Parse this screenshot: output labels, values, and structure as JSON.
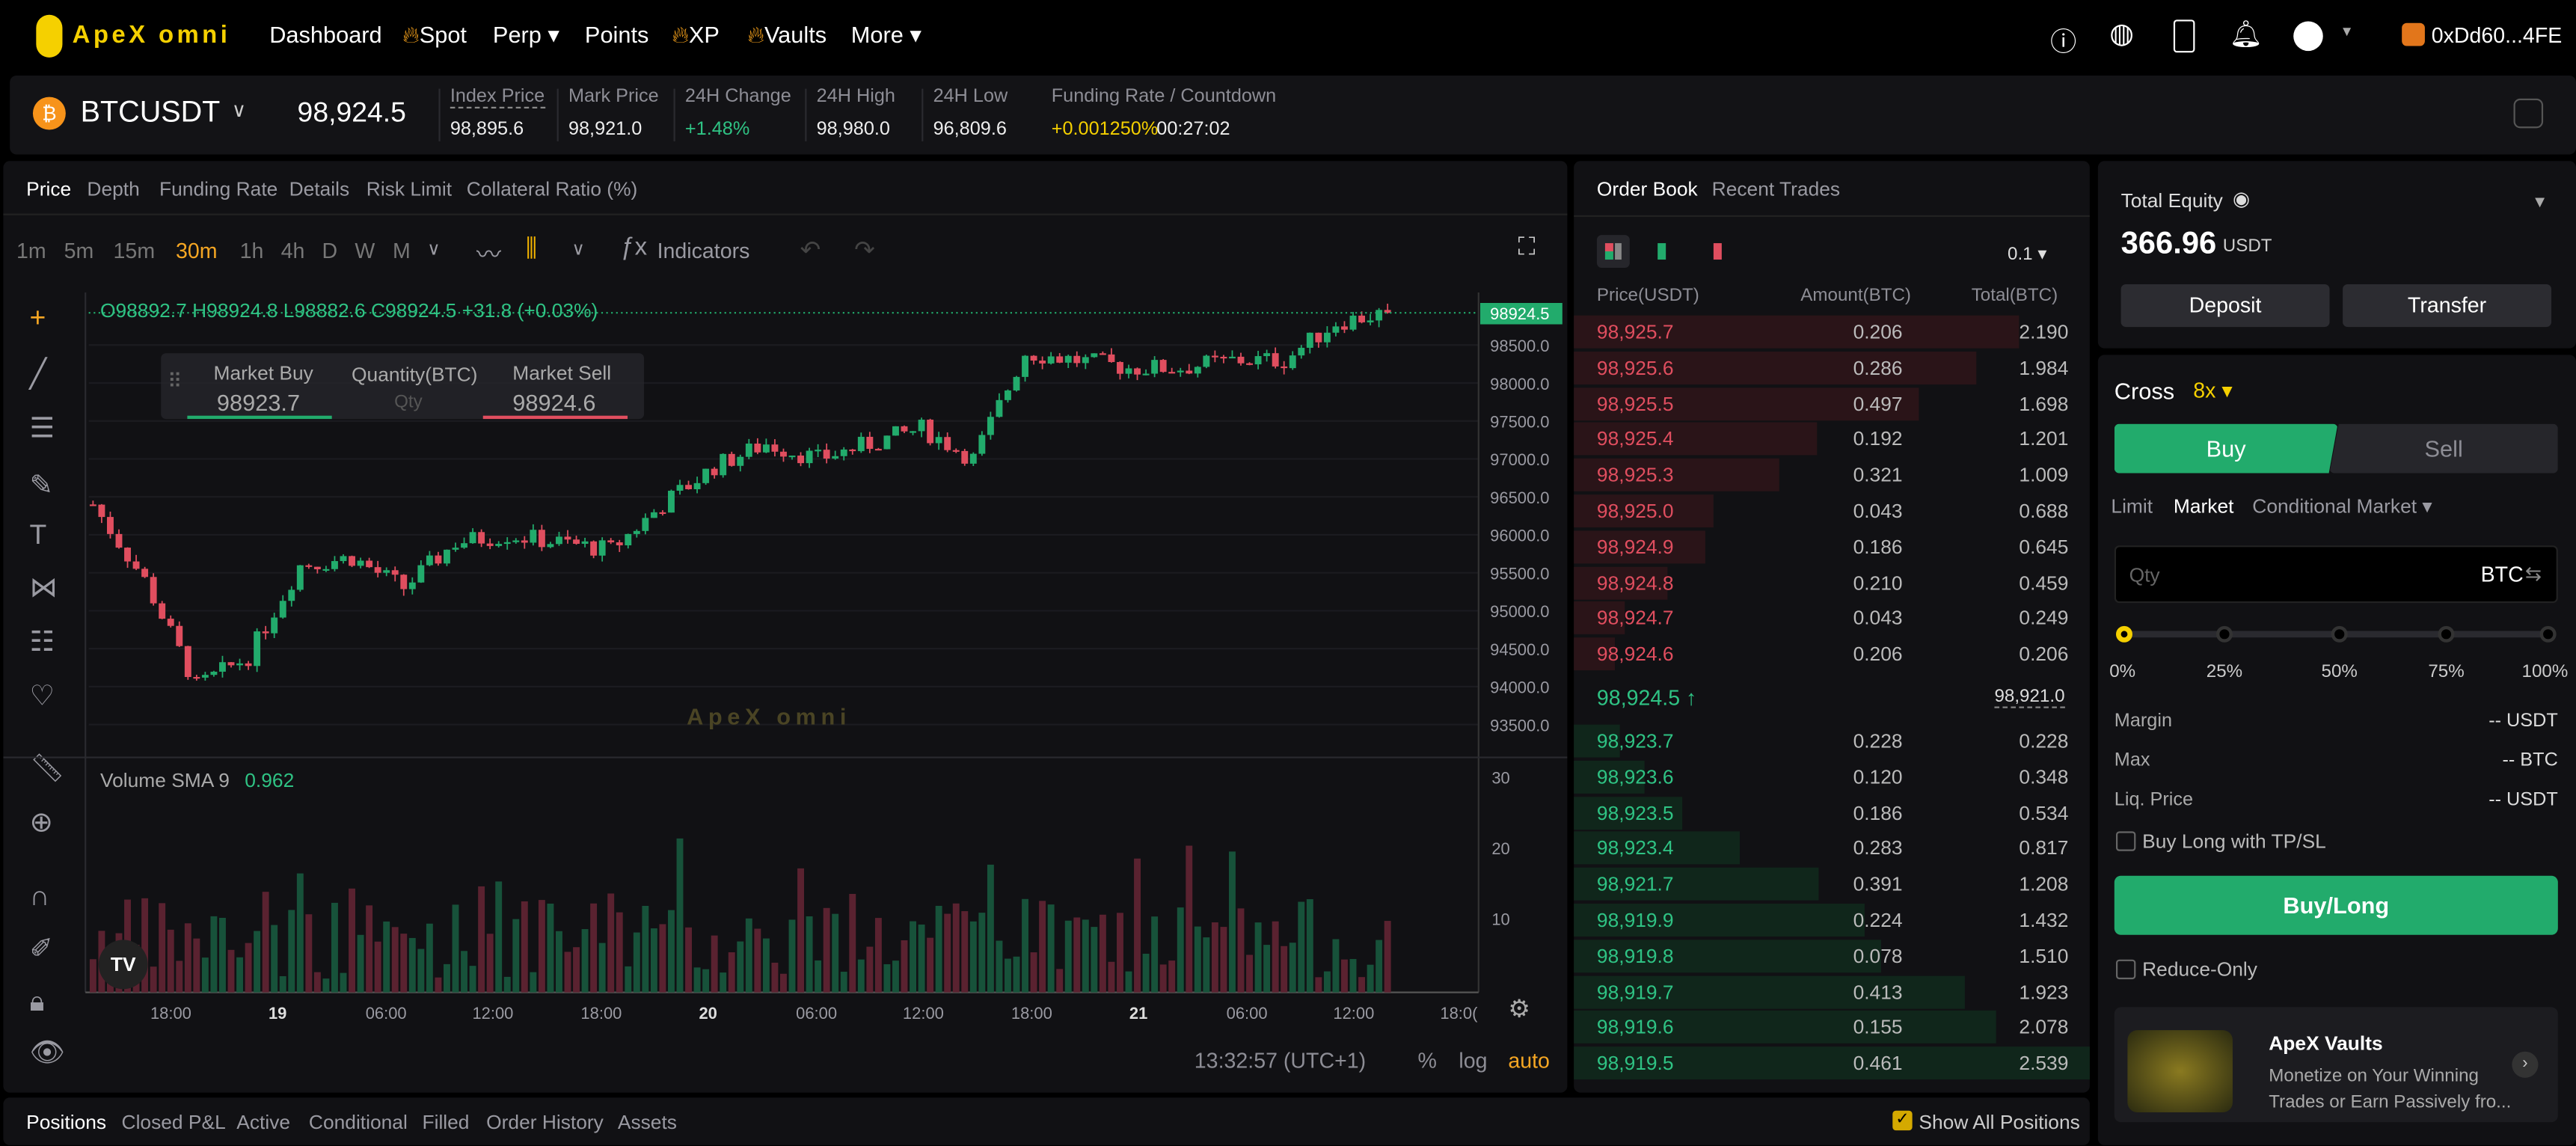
{
  "nav": {
    "logo": "ApeX omni",
    "items": [
      {
        "label": "Dashboard",
        "flame": false
      },
      {
        "label": "Spot",
        "flame": true
      },
      {
        "label": "Perp ▾",
        "flame": false
      },
      {
        "label": "Points",
        "flame": false
      },
      {
        "label": "XP",
        "flame": true
      },
      {
        "label": "Vaults",
        "flame": true
      },
      {
        "label": "More ▾",
        "flame": false
      }
    ],
    "wallet": "0xDd60...4FE",
    "icons": [
      "help-icon",
      "globe-icon",
      "mobile-icon",
      "bell-icon",
      "network-icon"
    ]
  },
  "ticker": {
    "symbol": "BTCUSDT",
    "last": "98,924.5",
    "stats": [
      {
        "label": "Index Price",
        "value": "98,895.6"
      },
      {
        "label": "Mark Price",
        "value": "98,921.0"
      },
      {
        "label": "24H Change",
        "value": "+1.48%"
      },
      {
        "label": "24H High",
        "value": "98,980.0"
      },
      {
        "label": "24H Low",
        "value": "96,809.6"
      }
    ],
    "funding_label": "Funding Rate / Countdown",
    "funding_rate": "+0.001250%",
    "countdown": "00:27:02"
  },
  "chart": {
    "tabs": [
      "Price",
      "Depth",
      "Funding Rate",
      "Details",
      "Risk Limit",
      "Collateral Ratio  (%)"
    ],
    "intervals": [
      "1m",
      "5m",
      "15m",
      "30m",
      "1h",
      "4h",
      "D",
      "W",
      "M"
    ],
    "active_interval": "30m",
    "indicators": "Indicators",
    "ohlc": "O98892.7 H98924.8 L98882.6 C98924.5 +31.8 (+0.03%)",
    "market_buy": {
      "label": "Market Buy",
      "value": "98923.7"
    },
    "qty_label": "Quantity(BTC)",
    "qty_placeholder": "Qty",
    "market_sell": {
      "label": "Market Sell",
      "value": "98924.6"
    },
    "watermark": "ApeX omni",
    "price_ticks": [
      "98500.0",
      "98000.0",
      "97500.0",
      "97000.0",
      "96500.0",
      "96000.0",
      "95500.0",
      "95000.0",
      "94500.0",
      "94000.0",
      "93500.0"
    ],
    "current_price_tag": "98924.5",
    "volume_label": "Volume SMA 9",
    "volume_value": "0.962",
    "volume_ticks": [
      "30",
      "20",
      "10"
    ],
    "time_ticks": [
      "18:00",
      "19",
      "06:00",
      "12:00",
      "18:00",
      "20",
      "06:00",
      "12:00",
      "18:00",
      "21",
      "06:00",
      "12:00",
      "18:0("
    ],
    "clock": "13:32:57 (UTC+1)",
    "scale_opts": [
      "%",
      "log",
      "auto"
    ],
    "closes_every_3h": [
      96400,
      95400,
      94000,
      94400,
      95600,
      95700,
      95300,
      95900,
      96000,
      95900,
      95800,
      96400,
      96900,
      97200,
      97000,
      97200,
      97400,
      97000,
      98400,
      98300,
      98200,
      98200,
      98300,
      98300,
      98800,
      98924.5
    ],
    "up_color": "#22ab6c",
    "down_color": "#e04e5f"
  },
  "orderbook": {
    "tabs": [
      "Order Book",
      "Recent Trades"
    ],
    "precision": "0.1 ▾",
    "headers": [
      "Price(USDT)",
      "Amount(BTC)",
      "Total(BTC)"
    ],
    "asks": [
      [
        "98,925.7",
        "0.206",
        "2.190"
      ],
      [
        "98,925.6",
        "0.286",
        "1.984"
      ],
      [
        "98,925.5",
        "0.497",
        "1.698"
      ],
      [
        "98,925.4",
        "0.192",
        "1.201"
      ],
      [
        "98,925.3",
        "0.321",
        "1.009"
      ],
      [
        "98,925.0",
        "0.043",
        "0.688"
      ],
      [
        "98,924.9",
        "0.186",
        "0.645"
      ],
      [
        "98,924.8",
        "0.210",
        "0.459"
      ],
      [
        "98,924.7",
        "0.043",
        "0.249"
      ],
      [
        "98,924.6",
        "0.206",
        "0.206"
      ]
    ],
    "mid": "98,924.5 ↑",
    "mark": "98,921.0",
    "bids": [
      [
        "98,923.7",
        "0.228",
        "0.228"
      ],
      [
        "98,923.6",
        "0.120",
        "0.348"
      ],
      [
        "98,923.5",
        "0.186",
        "0.534"
      ],
      [
        "98,923.4",
        "0.283",
        "0.817"
      ],
      [
        "98,921.7",
        "0.391",
        "1.208"
      ],
      [
        "98,919.9",
        "0.224",
        "1.432"
      ],
      [
        "98,919.8",
        "0.078",
        "1.510"
      ],
      [
        "98,919.7",
        "0.413",
        "1.923"
      ],
      [
        "98,919.6",
        "0.155",
        "2.078"
      ],
      [
        "98,919.5",
        "0.461",
        "2.539"
      ]
    ]
  },
  "account": {
    "equity_label": "Total Equity",
    "equity": "366.96",
    "unit": "USDT",
    "deposit": "Deposit",
    "transfer": "Transfer"
  },
  "order": {
    "margin_mode": "Cross",
    "leverage": "8x ▾",
    "buy": "Buy",
    "sell": "Sell",
    "types": [
      "Limit",
      "Market",
      "Conditional Market ▾"
    ],
    "qty_placeholder": "Qty",
    "qty_unit": "BTC",
    "slider": [
      "0%",
      "25%",
      "50%",
      "75%",
      "100%"
    ],
    "slider_value": 0,
    "info": [
      {
        "label": "Margin",
        "value": "-- USDT"
      },
      {
        "label": "Max",
        "value": "-- BTC"
      },
      {
        "label": "Liq. Price",
        "value": "-- USDT"
      }
    ],
    "tpsl": "Buy Long with TP/SL",
    "submit": "Buy/Long",
    "reduce_only": "Reduce-Only",
    "vault_title": "ApeX Vaults",
    "vault_desc1": "Monetize on Your Winning",
    "vault_desc2": "Trades or Earn Passively fro..."
  },
  "bottom": {
    "tabs": [
      "Positions",
      "Closed P&L",
      "Active",
      "Conditional",
      "Filled",
      "Order History",
      "Assets"
    ],
    "show_all": "Show All Positions"
  }
}
